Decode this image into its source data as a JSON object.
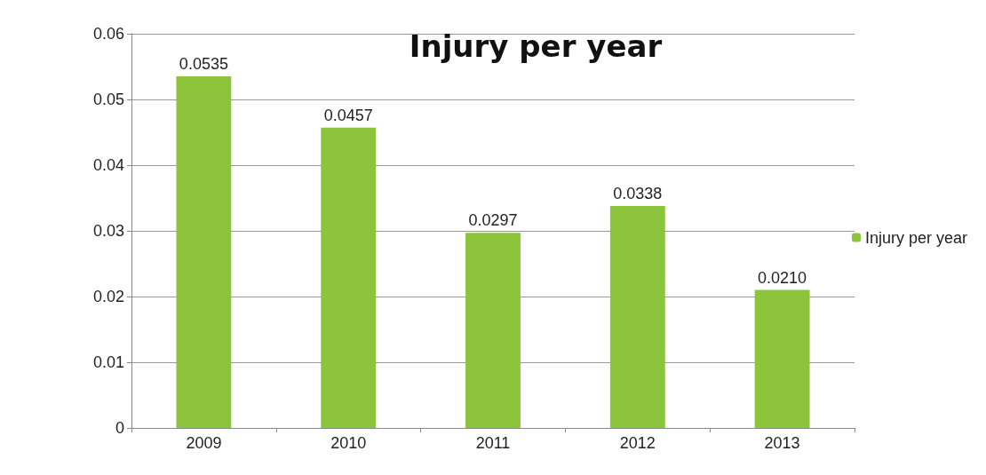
{
  "chart_data": {
    "type": "bar",
    "title": "Injury per year",
    "categories": [
      "2009",
      "2010",
      "2011",
      "2012",
      "2013"
    ],
    "series": [
      {
        "name": "Injury per year",
        "color": "#8cc43c",
        "values": [
          0.0535,
          0.0457,
          0.0297,
          0.0338,
          0.021
        ],
        "value_labels": [
          "0.0535",
          "0.0457",
          "0.0297",
          "0.0338",
          "0.0210"
        ]
      }
    ],
    "ylim": [
      0,
      0.06
    ],
    "yticks": [
      0,
      0.01,
      0.02,
      0.03,
      0.04,
      0.05,
      0.06
    ],
    "grid": "y",
    "legend": "right"
  }
}
